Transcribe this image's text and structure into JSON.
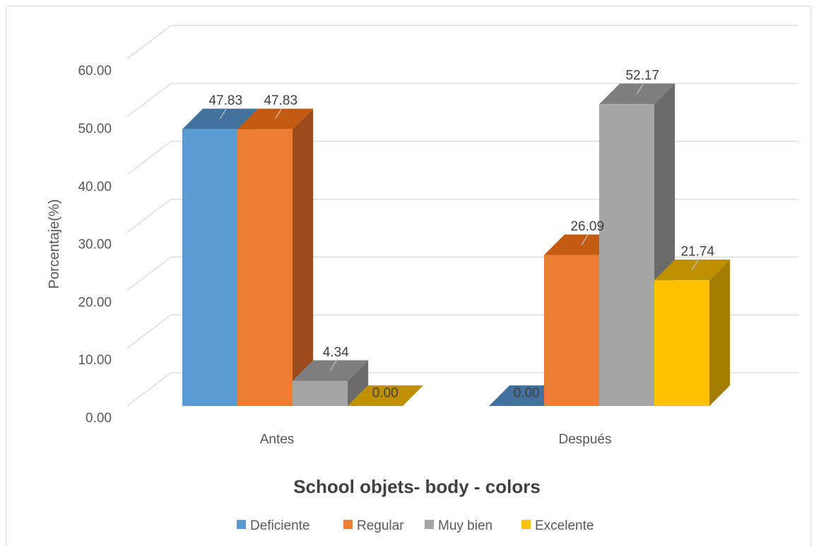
{
  "chart_data": {
    "type": "bar",
    "style": "3d-clustered-column",
    "title": "School objets- body - colors",
    "xlabel": "",
    "ylabel": "Porcentaje(%)",
    "ylim": [
      0,
      60
    ],
    "yticks": [
      "0.00",
      "10.00",
      "20.00",
      "30.00",
      "40.00",
      "50.00",
      "60.00"
    ],
    "grid": true,
    "legend_position": "bottom",
    "categories": [
      "Antes",
      "Después"
    ],
    "series": [
      {
        "name": "Deficiente",
        "values": [
          47.83,
          0.0
        ],
        "labels": [
          "47.83",
          "0.00"
        ],
        "color": "#5b9bd5",
        "top_color": "#41719c",
        "side_color": "#41719c"
      },
      {
        "name": "Regular",
        "values": [
          47.83,
          26.09
        ],
        "labels": [
          "47.83",
          "26.09"
        ],
        "color": "#ed7d31",
        "top_color": "#c55a11",
        "side_color": "#9e4b1c"
      },
      {
        "name": "Muy bien",
        "values": [
          4.34,
          52.17
        ],
        "labels": [
          "4.34",
          "52.17"
        ],
        "color": "#a5a5a5",
        "top_color": "#7f7f7f",
        "side_color": "#6b6b6b"
      },
      {
        "name": "Excelente",
        "values": [
          0.0,
          21.74
        ],
        "labels": [
          "0.00",
          "21.74"
        ],
        "color": "#ffc000",
        "top_color": "#bf9000",
        "side_color": "#a37c00"
      }
    ]
  }
}
